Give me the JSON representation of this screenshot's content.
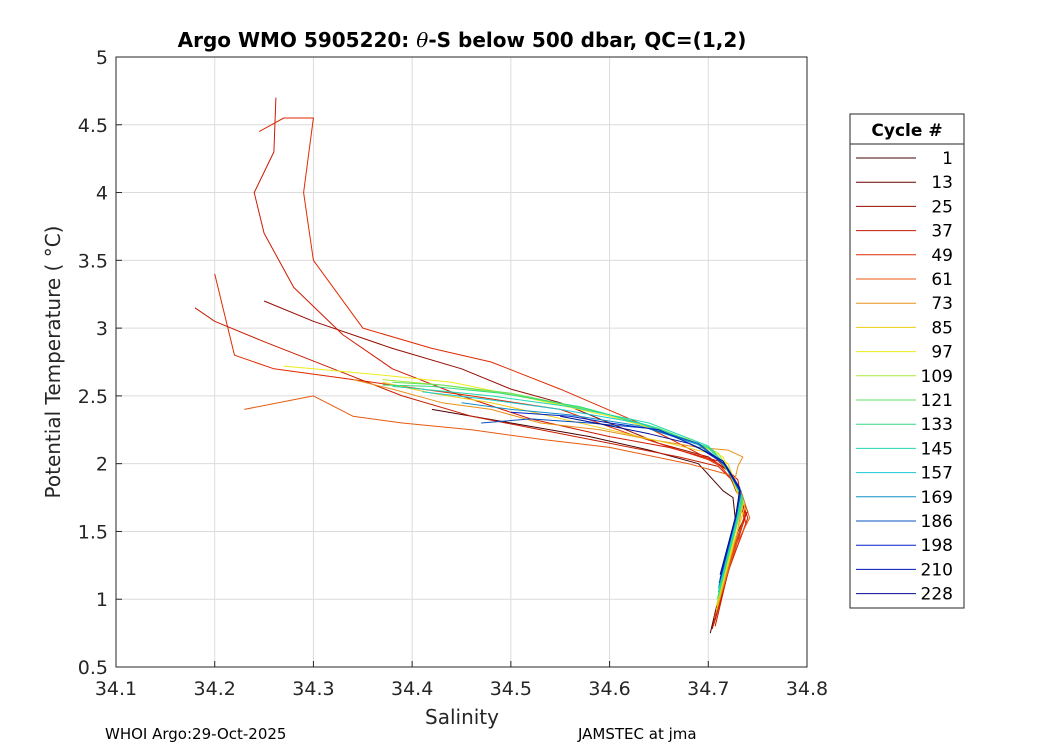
{
  "chart_data": {
    "type": "line",
    "title": "Argo WMO 5905220: θ-S below 500 dbar,  QC=(1,2)",
    "title_parts": {
      "prefix": "Argo WMO 5905220: ",
      "theta": "θ",
      "suffix": "-S below 500 dbar,  QC=(1,2)"
    },
    "xlabel": "Salinity",
    "ylabel": "Potential Temperature ( °C)",
    "xlim": [
      34.1,
      34.8
    ],
    "ylim": [
      0.5,
      5
    ],
    "xticks": [
      "34.1",
      "34.2",
      "34.3",
      "34.4",
      "34.5",
      "34.6",
      "34.7",
      "34.8"
    ],
    "yticks": [
      "0.5",
      "1",
      "1.5",
      "2",
      "2.5",
      "3",
      "3.5",
      "4",
      "4.5",
      "5"
    ],
    "grid": true,
    "legend_title": "Cycle #",
    "legend_position": "right",
    "series": [
      {
        "name": "1",
        "color": "#4a0000"
      },
      {
        "name": "13",
        "color": "#6e0000"
      },
      {
        "name": "25",
        "color": "#930b00"
      },
      {
        "name": "37",
        "color": "#c41a00"
      },
      {
        "name": "49",
        "color": "#e02a00"
      },
      {
        "name": "61",
        "color": "#e85a10"
      },
      {
        "name": "73",
        "color": "#e8901a"
      },
      {
        "name": "85",
        "color": "#eccd14"
      },
      {
        "name": "97",
        "color": "#ecec1e"
      },
      {
        "name": "109",
        "color": "#a8ea34"
      },
      {
        "name": "121",
        "color": "#62e060"
      },
      {
        "name": "133",
        "color": "#30dc80"
      },
      {
        "name": "145",
        "color": "#20d8b0"
      },
      {
        "name": "157",
        "color": "#18c8d0"
      },
      {
        "name": "169",
        "color": "#1090c8"
      },
      {
        "name": "186",
        "color": "#0850c0"
      },
      {
        "name": "198",
        "color": "#0020c8"
      },
      {
        "name": "210",
        "color": "#0014b8"
      },
      {
        "name": "228",
        "color": "#000c90"
      }
    ],
    "profiles": [
      {
        "color": "#4a0000",
        "points": [
          [
            34.702,
            0.75
          ],
          [
            34.71,
            1.0
          ],
          [
            34.72,
            1.3
          ],
          [
            34.728,
            1.55
          ],
          [
            34.725,
            1.75
          ],
          [
            34.715,
            1.8
          ],
          [
            34.69,
            2.0
          ],
          [
            34.64,
            2.1
          ],
          [
            34.58,
            2.2
          ],
          [
            34.5,
            2.3
          ],
          [
            34.42,
            2.4
          ]
        ]
      },
      {
        "color": "#930b00",
        "points": [
          [
            34.704,
            0.78
          ],
          [
            34.715,
            1.1
          ],
          [
            34.73,
            1.5
          ],
          [
            34.74,
            1.65
          ],
          [
            34.728,
            1.8
          ],
          [
            34.72,
            1.95
          ],
          [
            34.7,
            2.05
          ],
          [
            34.65,
            2.15
          ],
          [
            34.6,
            2.3
          ],
          [
            34.55,
            2.45
          ],
          [
            34.5,
            2.55
          ],
          [
            34.45,
            2.7
          ],
          [
            34.38,
            2.85
          ],
          [
            34.3,
            3.05
          ],
          [
            34.25,
            3.2
          ]
        ]
      },
      {
        "color": "#d01800",
        "points": [
          [
            34.707,
            0.8
          ],
          [
            34.72,
            1.2
          ],
          [
            34.735,
            1.5
          ],
          [
            34.74,
            1.6
          ],
          [
            34.733,
            1.75
          ],
          [
            34.73,
            1.88
          ],
          [
            34.71,
            2.02
          ],
          [
            34.66,
            2.12
          ],
          [
            34.6,
            2.2
          ],
          [
            34.52,
            2.33
          ],
          [
            34.45,
            2.5
          ],
          [
            34.38,
            2.7
          ],
          [
            34.33,
            2.95
          ],
          [
            34.28,
            3.3
          ],
          [
            34.25,
            3.7
          ],
          [
            34.24,
            4.0
          ],
          [
            34.26,
            4.3
          ],
          [
            34.262,
            4.7
          ]
        ]
      },
      {
        "color": "#e02a00",
        "points": [
          [
            34.706,
            0.82
          ],
          [
            34.722,
            1.25
          ],
          [
            34.738,
            1.55
          ],
          [
            34.735,
            1.7
          ],
          [
            34.722,
            1.9
          ],
          [
            34.71,
            2.0
          ],
          [
            34.63,
            2.3
          ],
          [
            34.55,
            2.55
          ],
          [
            34.48,
            2.75
          ],
          [
            34.42,
            2.85
          ],
          [
            34.35,
            3.0
          ],
          [
            34.3,
            3.5
          ],
          [
            34.29,
            4.0
          ],
          [
            34.3,
            4.55
          ],
          [
            34.27,
            4.55
          ],
          [
            34.245,
            4.45
          ]
        ]
      },
      {
        "color": "#e02a00",
        "points": [
          [
            34.705,
            0.8
          ],
          [
            34.725,
            1.35
          ],
          [
            34.736,
            1.6
          ],
          [
            34.73,
            1.82
          ],
          [
            34.72,
            1.95
          ],
          [
            34.7,
            2.03
          ],
          [
            34.62,
            2.22
          ],
          [
            34.55,
            2.4
          ],
          [
            34.46,
            2.5
          ],
          [
            34.36,
            2.6
          ],
          [
            34.26,
            2.7
          ],
          [
            34.22,
            2.8
          ],
          [
            34.21,
            3.1
          ],
          [
            34.2,
            3.4
          ]
        ]
      },
      {
        "color": "#c81e00",
        "points": [
          [
            34.707,
            0.85
          ],
          [
            34.724,
            1.3
          ],
          [
            34.738,
            1.62
          ],
          [
            34.728,
            1.85
          ],
          [
            34.71,
            1.98
          ],
          [
            34.67,
            2.05
          ],
          [
            34.6,
            2.15
          ],
          [
            34.53,
            2.25
          ],
          [
            34.46,
            2.35
          ],
          [
            34.39,
            2.5
          ],
          [
            34.32,
            2.7
          ],
          [
            34.25,
            2.9
          ],
          [
            34.2,
            3.05
          ],
          [
            34.18,
            3.15
          ]
        ]
      },
      {
        "color": "#e85a10",
        "points": [
          [
            34.706,
            0.86
          ],
          [
            34.728,
            1.4
          ],
          [
            34.742,
            1.6
          ],
          [
            34.733,
            1.8
          ],
          [
            34.72,
            1.92
          ],
          [
            34.68,
            2.0
          ],
          [
            34.6,
            2.12
          ],
          [
            34.53,
            2.18
          ],
          [
            34.46,
            2.25
          ],
          [
            34.39,
            2.3
          ],
          [
            34.34,
            2.35
          ],
          [
            34.3,
            2.5
          ],
          [
            34.23,
            2.4
          ]
        ]
      },
      {
        "color": "#e8901a",
        "points": [
          [
            34.708,
            0.9
          ],
          [
            34.728,
            1.45
          ],
          [
            34.735,
            1.7
          ],
          [
            34.727,
            1.88
          ],
          [
            34.73,
            1.98
          ],
          [
            34.735,
            2.05
          ],
          [
            34.72,
            2.1
          ],
          [
            34.69,
            2.12
          ],
          [
            34.64,
            2.18
          ],
          [
            34.59,
            2.25
          ],
          [
            34.53,
            2.3
          ],
          [
            34.48,
            2.4
          ],
          [
            34.43,
            2.45
          ],
          [
            34.38,
            2.55
          ],
          [
            34.34,
            2.62
          ]
        ]
      },
      {
        "color": "#eccd14",
        "points": [
          [
            34.708,
            0.92
          ],
          [
            34.726,
            1.42
          ],
          [
            34.737,
            1.68
          ],
          [
            34.728,
            1.85
          ],
          [
            34.72,
            2.0
          ],
          [
            34.7,
            2.08
          ],
          [
            34.66,
            2.15
          ],
          [
            34.6,
            2.25
          ],
          [
            34.54,
            2.35
          ],
          [
            34.48,
            2.45
          ],
          [
            34.42,
            2.52
          ],
          [
            34.37,
            2.6
          ]
        ]
      },
      {
        "color": "#ecec1e",
        "points": [
          [
            34.708,
            0.95
          ],
          [
            34.726,
            1.45
          ],
          [
            34.734,
            1.7
          ],
          [
            34.725,
            1.87
          ],
          [
            34.715,
            2.05
          ],
          [
            34.68,
            2.18
          ],
          [
            34.6,
            2.35
          ],
          [
            34.52,
            2.48
          ],
          [
            34.44,
            2.6
          ],
          [
            34.36,
            2.66
          ],
          [
            34.3,
            2.7
          ],
          [
            34.27,
            2.72
          ]
        ]
      },
      {
        "color": "#a8ea34",
        "points": [
          [
            34.709,
            0.97
          ],
          [
            34.727,
            1.5
          ],
          [
            34.736,
            1.72
          ],
          [
            34.724,
            1.9
          ],
          [
            34.71,
            2.08
          ],
          [
            34.66,
            2.23
          ],
          [
            34.59,
            2.38
          ],
          [
            34.51,
            2.5
          ],
          [
            34.43,
            2.58
          ],
          [
            34.37,
            2.62
          ]
        ]
      },
      {
        "color": "#62e060",
        "points": [
          [
            34.709,
            1.0
          ],
          [
            34.728,
            1.52
          ],
          [
            34.735,
            1.73
          ],
          [
            34.722,
            1.92
          ],
          [
            34.705,
            2.1
          ],
          [
            34.65,
            2.26
          ],
          [
            34.58,
            2.4
          ],
          [
            34.5,
            2.52
          ],
          [
            34.43,
            2.58
          ],
          [
            34.38,
            2.6
          ]
        ]
      },
      {
        "color": "#30dc80",
        "points": [
          [
            34.71,
            1.02
          ],
          [
            34.728,
            1.55
          ],
          [
            34.735,
            1.75
          ],
          [
            34.72,
            1.95
          ],
          [
            34.7,
            2.12
          ],
          [
            34.64,
            2.28
          ],
          [
            34.57,
            2.42
          ],
          [
            34.49,
            2.52
          ],
          [
            34.42,
            2.57
          ],
          [
            34.37,
            2.58
          ]
        ]
      },
      {
        "color": "#20d8b0",
        "points": [
          [
            34.71,
            1.05
          ],
          [
            34.728,
            1.56
          ],
          [
            34.734,
            1.76
          ],
          [
            34.72,
            1.97
          ],
          [
            34.7,
            2.13
          ],
          [
            34.64,
            2.3
          ],
          [
            34.56,
            2.42
          ],
          [
            34.48,
            2.5
          ],
          [
            34.41,
            2.55
          ],
          [
            34.38,
            2.57
          ]
        ]
      },
      {
        "color": "#18c8d0",
        "points": [
          [
            34.71,
            1.08
          ],
          [
            34.728,
            1.58
          ],
          [
            34.733,
            1.78
          ],
          [
            34.718,
            1.98
          ],
          [
            34.69,
            2.14
          ],
          [
            34.63,
            2.3
          ],
          [
            34.55,
            2.4
          ],
          [
            34.47,
            2.48
          ],
          [
            34.41,
            2.53
          ]
        ]
      },
      {
        "color": "#1090c8",
        "points": [
          [
            34.711,
            1.1
          ],
          [
            34.728,
            1.6
          ],
          [
            34.733,
            1.78
          ],
          [
            34.718,
            1.98
          ],
          [
            34.69,
            2.14
          ],
          [
            34.63,
            2.28
          ],
          [
            34.56,
            2.36
          ],
          [
            34.5,
            2.4
          ],
          [
            34.45,
            2.45
          ]
        ]
      },
      {
        "color": "#0850c0",
        "points": [
          [
            34.711,
            1.12
          ],
          [
            34.728,
            1.6
          ],
          [
            34.733,
            1.8
          ],
          [
            34.716,
            2.0
          ],
          [
            34.69,
            2.15
          ],
          [
            34.64,
            2.26
          ],
          [
            34.58,
            2.3
          ],
          [
            34.52,
            2.33
          ],
          [
            34.47,
            2.3
          ]
        ]
      },
      {
        "color": "#0020c8",
        "points": [
          [
            34.712,
            1.15
          ],
          [
            34.728,
            1.62
          ],
          [
            34.732,
            1.8
          ],
          [
            34.716,
            2.0
          ],
          [
            34.69,
            2.12
          ],
          [
            34.65,
            2.25
          ],
          [
            34.6,
            2.3
          ],
          [
            34.56,
            2.35
          ],
          [
            34.5,
            2.38
          ]
        ]
      },
      {
        "color": "#000c90",
        "points": [
          [
            34.712,
            1.18
          ],
          [
            34.728,
            1.62
          ],
          [
            34.732,
            1.82
          ],
          [
            34.715,
            2.02
          ],
          [
            34.7,
            2.08
          ],
          [
            34.68,
            2.15
          ],
          [
            34.64,
            2.22
          ],
          [
            34.6,
            2.28
          ],
          [
            34.55,
            2.35
          ]
        ]
      }
    ]
  },
  "footer": {
    "left": "WHOI Argo:29-Oct-2025",
    "right": "JAMSTEC at jma"
  }
}
